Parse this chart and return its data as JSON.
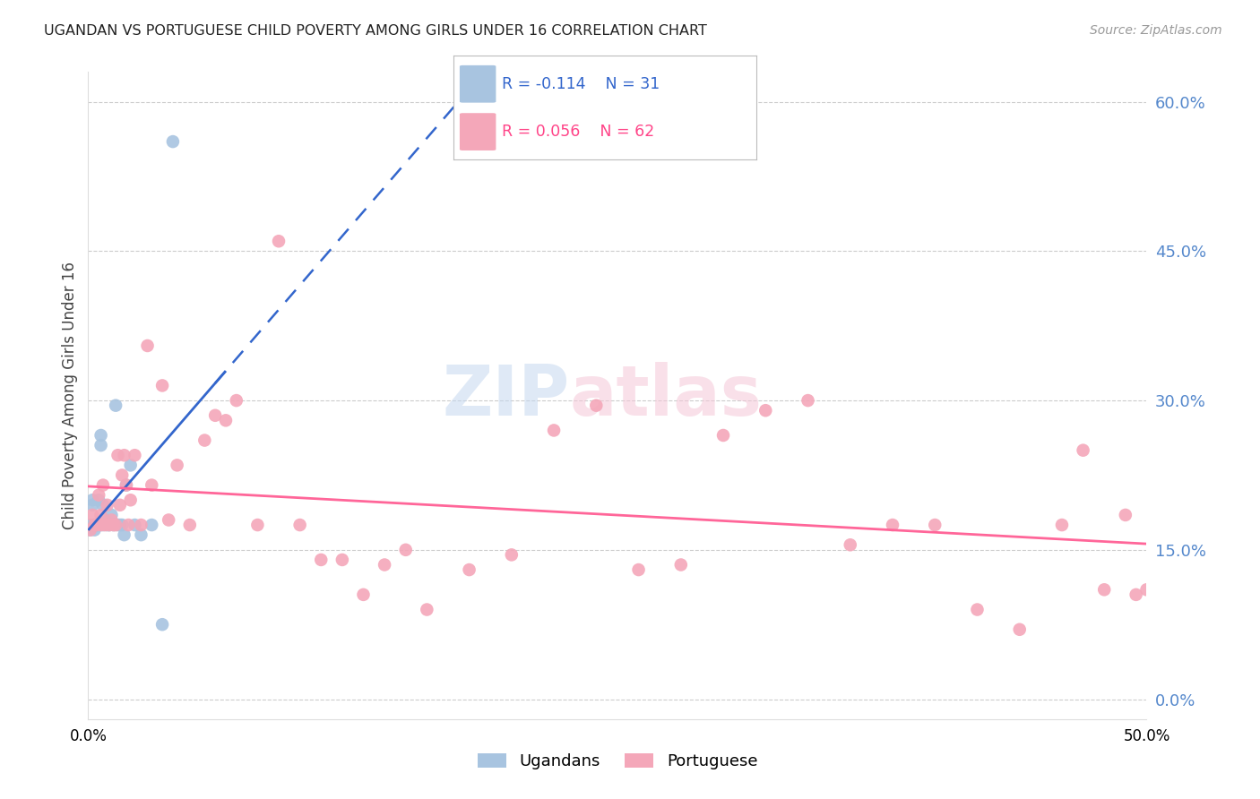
{
  "title": "UGANDAN VS PORTUGUESE CHILD POVERTY AMONG GIRLS UNDER 16 CORRELATION CHART",
  "source": "Source: ZipAtlas.com",
  "ylabel": "Child Poverty Among Girls Under 16",
  "right_yticks": [
    0.0,
    0.15,
    0.3,
    0.45,
    0.6
  ],
  "right_yticklabels": [
    "0.0%",
    "15.0%",
    "30.0%",
    "45.0%",
    "60.0%"
  ],
  "xlim": [
    0.0,
    0.5
  ],
  "ylim": [
    -0.02,
    0.63
  ],
  "ugandan_color": "#a8c4e0",
  "portuguese_color": "#f4a7b9",
  "ugandan_line_color": "#3366cc",
  "portuguese_line_color": "#ff6699",
  "legend_r_ugandan": "R = -0.114",
  "legend_n_ugandan": "N = 31",
  "legend_r_portuguese": "R = 0.056",
  "legend_n_portuguese": "N = 62",
  "ugandan_x": [
    0.001,
    0.001,
    0.002,
    0.002,
    0.003,
    0.003,
    0.004,
    0.004,
    0.005,
    0.005,
    0.006,
    0.006,
    0.007,
    0.007,
    0.008,
    0.009,
    0.01,
    0.011,
    0.012,
    0.013,
    0.014,
    0.015,
    0.016,
    0.017,
    0.018,
    0.02,
    0.022,
    0.025,
    0.03,
    0.035,
    0.04
  ],
  "ugandan_y": [
    0.175,
    0.17,
    0.2,
    0.195,
    0.175,
    0.17,
    0.175,
    0.175,
    0.2,
    0.175,
    0.265,
    0.255,
    0.195,
    0.175,
    0.18,
    0.175,
    0.175,
    0.185,
    0.175,
    0.295,
    0.175,
    0.175,
    0.175,
    0.165,
    0.215,
    0.235,
    0.175,
    0.165,
    0.175,
    0.075,
    0.56
  ],
  "portuguese_x": [
    0.001,
    0.002,
    0.003,
    0.004,
    0.005,
    0.006,
    0.006,
    0.007,
    0.008,
    0.009,
    0.01,
    0.011,
    0.012,
    0.013,
    0.014,
    0.015,
    0.016,
    0.017,
    0.018,
    0.019,
    0.02,
    0.022,
    0.025,
    0.028,
    0.03,
    0.035,
    0.038,
    0.042,
    0.048,
    0.055,
    0.06,
    0.065,
    0.07,
    0.08,
    0.09,
    0.1,
    0.11,
    0.12,
    0.13,
    0.14,
    0.15,
    0.16,
    0.18,
    0.2,
    0.22,
    0.24,
    0.26,
    0.28,
    0.3,
    0.32,
    0.34,
    0.36,
    0.38,
    0.4,
    0.42,
    0.44,
    0.46,
    0.47,
    0.48,
    0.49,
    0.495,
    0.5
  ],
  "portuguese_y": [
    0.17,
    0.185,
    0.175,
    0.175,
    0.205,
    0.175,
    0.185,
    0.215,
    0.175,
    0.195,
    0.175,
    0.18,
    0.175,
    0.175,
    0.245,
    0.195,
    0.225,
    0.245,
    0.215,
    0.175,
    0.2,
    0.245,
    0.175,
    0.355,
    0.215,
    0.315,
    0.18,
    0.235,
    0.175,
    0.26,
    0.285,
    0.28,
    0.3,
    0.175,
    0.46,
    0.175,
    0.14,
    0.14,
    0.105,
    0.135,
    0.15,
    0.09,
    0.13,
    0.145,
    0.27,
    0.295,
    0.13,
    0.135,
    0.265,
    0.29,
    0.3,
    0.155,
    0.175,
    0.175,
    0.09,
    0.07,
    0.175,
    0.25,
    0.11,
    0.185,
    0.105,
    0.11
  ],
  "background_color": "#ffffff",
  "grid_color": "#cccccc",
  "title_color": "#222222",
  "right_axis_color": "#5588cc",
  "xtick_labels": [
    "0.0%",
    "50.0%"
  ],
  "xtick_positions": [
    0.0,
    0.5
  ]
}
